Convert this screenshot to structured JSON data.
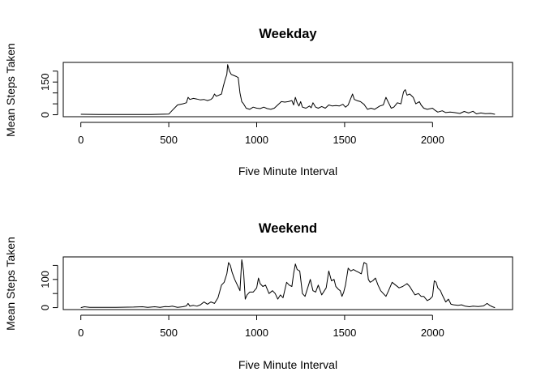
{
  "chart_data": [
    {
      "type": "line",
      "title": "Weekday",
      "title_color": "#0000ff",
      "xlabel": "Five Minute Interval",
      "ylabel": "Mean Steps Taken",
      "xlim": [
        -100,
        2455
      ],
      "ylim": [
        -9,
        240
      ],
      "x_ticks": [
        0,
        500,
        1000,
        1500,
        2000
      ],
      "x_tick_labels": [
        "0",
        "500",
        "1000",
        "1500",
        "2000"
      ],
      "y_ticks": [
        0,
        50,
        100,
        150,
        200
      ],
      "y_tick_labels": [
        "0",
        "",
        "",
        "150",
        ""
      ],
      "series": [
        {
          "color": "#000000",
          "points": [
            [
              0,
              2
            ],
            [
              100,
              1
            ],
            [
              200,
              1
            ],
            [
              300,
              1
            ],
            [
              400,
              1
            ],
            [
              500,
              3
            ],
            [
              520,
              20
            ],
            [
              550,
              45
            ],
            [
              580,
              50
            ],
            [
              600,
              55
            ],
            [
              610,
              80
            ],
            [
              620,
              70
            ],
            [
              640,
              75
            ],
            [
              660,
              72
            ],
            [
              680,
              68
            ],
            [
              700,
              70
            ],
            [
              720,
              65
            ],
            [
              740,
              70
            ],
            [
              750,
              78
            ],
            [
              760,
              95
            ],
            [
              770,
              85
            ],
            [
              780,
              88
            ],
            [
              800,
              95
            ],
            [
              810,
              130
            ],
            [
              820,
              160
            ],
            [
              830,
              185
            ],
            [
              835,
              230
            ],
            [
              845,
              200
            ],
            [
              855,
              185
            ],
            [
              870,
              180
            ],
            [
              885,
              175
            ],
            [
              895,
              170
            ],
            [
              905,
              100
            ],
            [
              915,
              60
            ],
            [
              925,
              50
            ],
            [
              940,
              30
            ],
            [
              960,
              25
            ],
            [
              980,
              35
            ],
            [
              1000,
              30
            ],
            [
              1020,
              28
            ],
            [
              1040,
              35
            ],
            [
              1060,
              28
            ],
            [
              1080,
              25
            ],
            [
              1100,
              30
            ],
            [
              1120,
              45
            ],
            [
              1140,
              60
            ],
            [
              1160,
              58
            ],
            [
              1180,
              60
            ],
            [
              1200,
              65
            ],
            [
              1210,
              45
            ],
            [
              1220,
              80
            ],
            [
              1230,
              55
            ],
            [
              1240,
              40
            ],
            [
              1250,
              60
            ],
            [
              1260,
              35
            ],
            [
              1280,
              30
            ],
            [
              1300,
              40
            ],
            [
              1310,
              32
            ],
            [
              1320,
              55
            ],
            [
              1335,
              35
            ],
            [
              1350,
              30
            ],
            [
              1370,
              38
            ],
            [
              1390,
              30
            ],
            [
              1410,
              45
            ],
            [
              1430,
              40
            ],
            [
              1450,
              42
            ],
            [
              1470,
              40
            ],
            [
              1490,
              48
            ],
            [
              1505,
              35
            ],
            [
              1520,
              45
            ],
            [
              1535,
              75
            ],
            [
              1545,
              95
            ],
            [
              1555,
              70
            ],
            [
              1570,
              65
            ],
            [
              1590,
              60
            ],
            [
              1610,
              48
            ],
            [
              1630,
              25
            ],
            [
              1650,
              30
            ],
            [
              1670,
              25
            ],
            [
              1700,
              40
            ],
            [
              1720,
              45
            ],
            [
              1735,
              80
            ],
            [
              1750,
              55
            ],
            [
              1765,
              30
            ],
            [
              1780,
              35
            ],
            [
              1800,
              55
            ],
            [
              1820,
              50
            ],
            [
              1835,
              105
            ],
            [
              1845,
              115
            ],
            [
              1855,
              90
            ],
            [
              1870,
              95
            ],
            [
              1890,
              80
            ],
            [
              1905,
              50
            ],
            [
              1925,
              60
            ],
            [
              1935,
              45
            ],
            [
              1950,
              30
            ],
            [
              1970,
              25
            ],
            [
              2000,
              30
            ],
            [
              2015,
              20
            ],
            [
              2030,
              12
            ],
            [
              2055,
              18
            ],
            [
              2075,
              10
            ],
            [
              2100,
              12
            ],
            [
              2125,
              10
            ],
            [
              2155,
              6
            ],
            [
              2180,
              15
            ],
            [
              2205,
              8
            ],
            [
              2230,
              16
            ],
            [
              2250,
              4
            ],
            [
              2275,
              8
            ],
            [
              2300,
              5
            ],
            [
              2330,
              6
            ],
            [
              2355,
              2
            ]
          ]
        }
      ]
    },
    {
      "type": "line",
      "title": "Weekend",
      "title_color": "#0000ff",
      "xlabel": "Five Minute Interval",
      "ylabel": "Mean Steps Taken",
      "xlim": [
        -100,
        2455
      ],
      "ylim": [
        -7,
        180
      ],
      "x_ticks": [
        0,
        500,
        1000,
        1500,
        2000
      ],
      "x_tick_labels": [
        "0",
        "500",
        "1000",
        "1500",
        "2000"
      ],
      "y_ticks": [
        0,
        50,
        100,
        150
      ],
      "y_tick_labels": [
        "0",
        "",
        "100",
        ""
      ],
      "series": [
        {
          "color": "#000000",
          "points": [
            [
              0,
              0
            ],
            [
              20,
              3
            ],
            [
              50,
              1
            ],
            [
              100,
              1
            ],
            [
              200,
              1
            ],
            [
              300,
              2
            ],
            [
              350,
              3
            ],
            [
              380,
              1
            ],
            [
              420,
              3
            ],
            [
              450,
              1
            ],
            [
              480,
              4
            ],
            [
              500,
              3
            ],
            [
              520,
              5
            ],
            [
              550,
              1
            ],
            [
              580,
              3
            ],
            [
              600,
              6
            ],
            [
              610,
              15
            ],
            [
              620,
              5
            ],
            [
              640,
              8
            ],
            [
              660,
              5
            ],
            [
              680,
              10
            ],
            [
              700,
              20
            ],
            [
              720,
              12
            ],
            [
              740,
              20
            ],
            [
              760,
              15
            ],
            [
              780,
              35
            ],
            [
              800,
              80
            ],
            [
              815,
              90
            ],
            [
              830,
              120
            ],
            [
              840,
              160
            ],
            [
              850,
              150
            ],
            [
              860,
              125
            ],
            [
              875,
              100
            ],
            [
              890,
              80
            ],
            [
              905,
              60
            ],
            [
              915,
              170
            ],
            [
              925,
              130
            ],
            [
              935,
              30
            ],
            [
              945,
              45
            ],
            [
              960,
              55
            ],
            [
              980,
              55
            ],
            [
              1000,
              70
            ],
            [
              1010,
              105
            ],
            [
              1020,
              85
            ],
            [
              1035,
              75
            ],
            [
              1050,
              80
            ],
            [
              1070,
              50
            ],
            [
              1090,
              60
            ],
            [
              1105,
              50
            ],
            [
              1120,
              30
            ],
            [
              1135,
              45
            ],
            [
              1150,
              35
            ],
            [
              1170,
              90
            ],
            [
              1185,
              80
            ],
            [
              1200,
              75
            ],
            [
              1210,
              120
            ],
            [
              1220,
              155
            ],
            [
              1230,
              135
            ],
            [
              1245,
              130
            ],
            [
              1260,
              50
            ],
            [
              1275,
              40
            ],
            [
              1290,
              70
            ],
            [
              1305,
              100
            ],
            [
              1320,
              60
            ],
            [
              1335,
              55
            ],
            [
              1350,
              80
            ],
            [
              1370,
              45
            ],
            [
              1395,
              70
            ],
            [
              1410,
              130
            ],
            [
              1425,
              95
            ],
            [
              1440,
              100
            ],
            [
              1450,
              75
            ],
            [
              1465,
              65
            ],
            [
              1475,
              60
            ],
            [
              1485,
              40
            ],
            [
              1495,
              55
            ],
            [
              1505,
              80
            ],
            [
              1520,
              140
            ],
            [
              1535,
              130
            ],
            [
              1550,
              135
            ],
            [
              1565,
              130
            ],
            [
              1580,
              125
            ],
            [
              1595,
              120
            ],
            [
              1610,
              160
            ],
            [
              1625,
              155
            ],
            [
              1635,
              100
            ],
            [
              1645,
              90
            ],
            [
              1660,
              95
            ],
            [
              1675,
              105
            ],
            [
              1690,
              80
            ],
            [
              1705,
              60
            ],
            [
              1720,
              50
            ],
            [
              1735,
              40
            ],
            [
              1750,
              60
            ],
            [
              1770,
              90
            ],
            [
              1790,
              80
            ],
            [
              1810,
              70
            ],
            [
              1830,
              75
            ],
            [
              1855,
              85
            ],
            [
              1870,
              75
            ],
            [
              1885,
              60
            ],
            [
              1900,
              45
            ],
            [
              1920,
              50
            ],
            [
              1935,
              40
            ],
            [
              1950,
              40
            ],
            [
              1970,
              25
            ],
            [
              1985,
              30
            ],
            [
              2000,
              40
            ],
            [
              2010,
              95
            ],
            [
              2020,
              90
            ],
            [
              2030,
              70
            ],
            [
              2045,
              60
            ],
            [
              2055,
              45
            ],
            [
              2075,
              20
            ],
            [
              2090,
              30
            ],
            [
              2105,
              12
            ],
            [
              2120,
              10
            ],
            [
              2145,
              8
            ],
            [
              2165,
              10
            ],
            [
              2185,
              5
            ],
            [
              2210,
              3
            ],
            [
              2230,
              5
            ],
            [
              2260,
              4
            ],
            [
              2290,
              6
            ],
            [
              2310,
              15
            ],
            [
              2325,
              8
            ],
            [
              2340,
              3
            ],
            [
              2355,
              0
            ]
          ]
        }
      ]
    }
  ]
}
